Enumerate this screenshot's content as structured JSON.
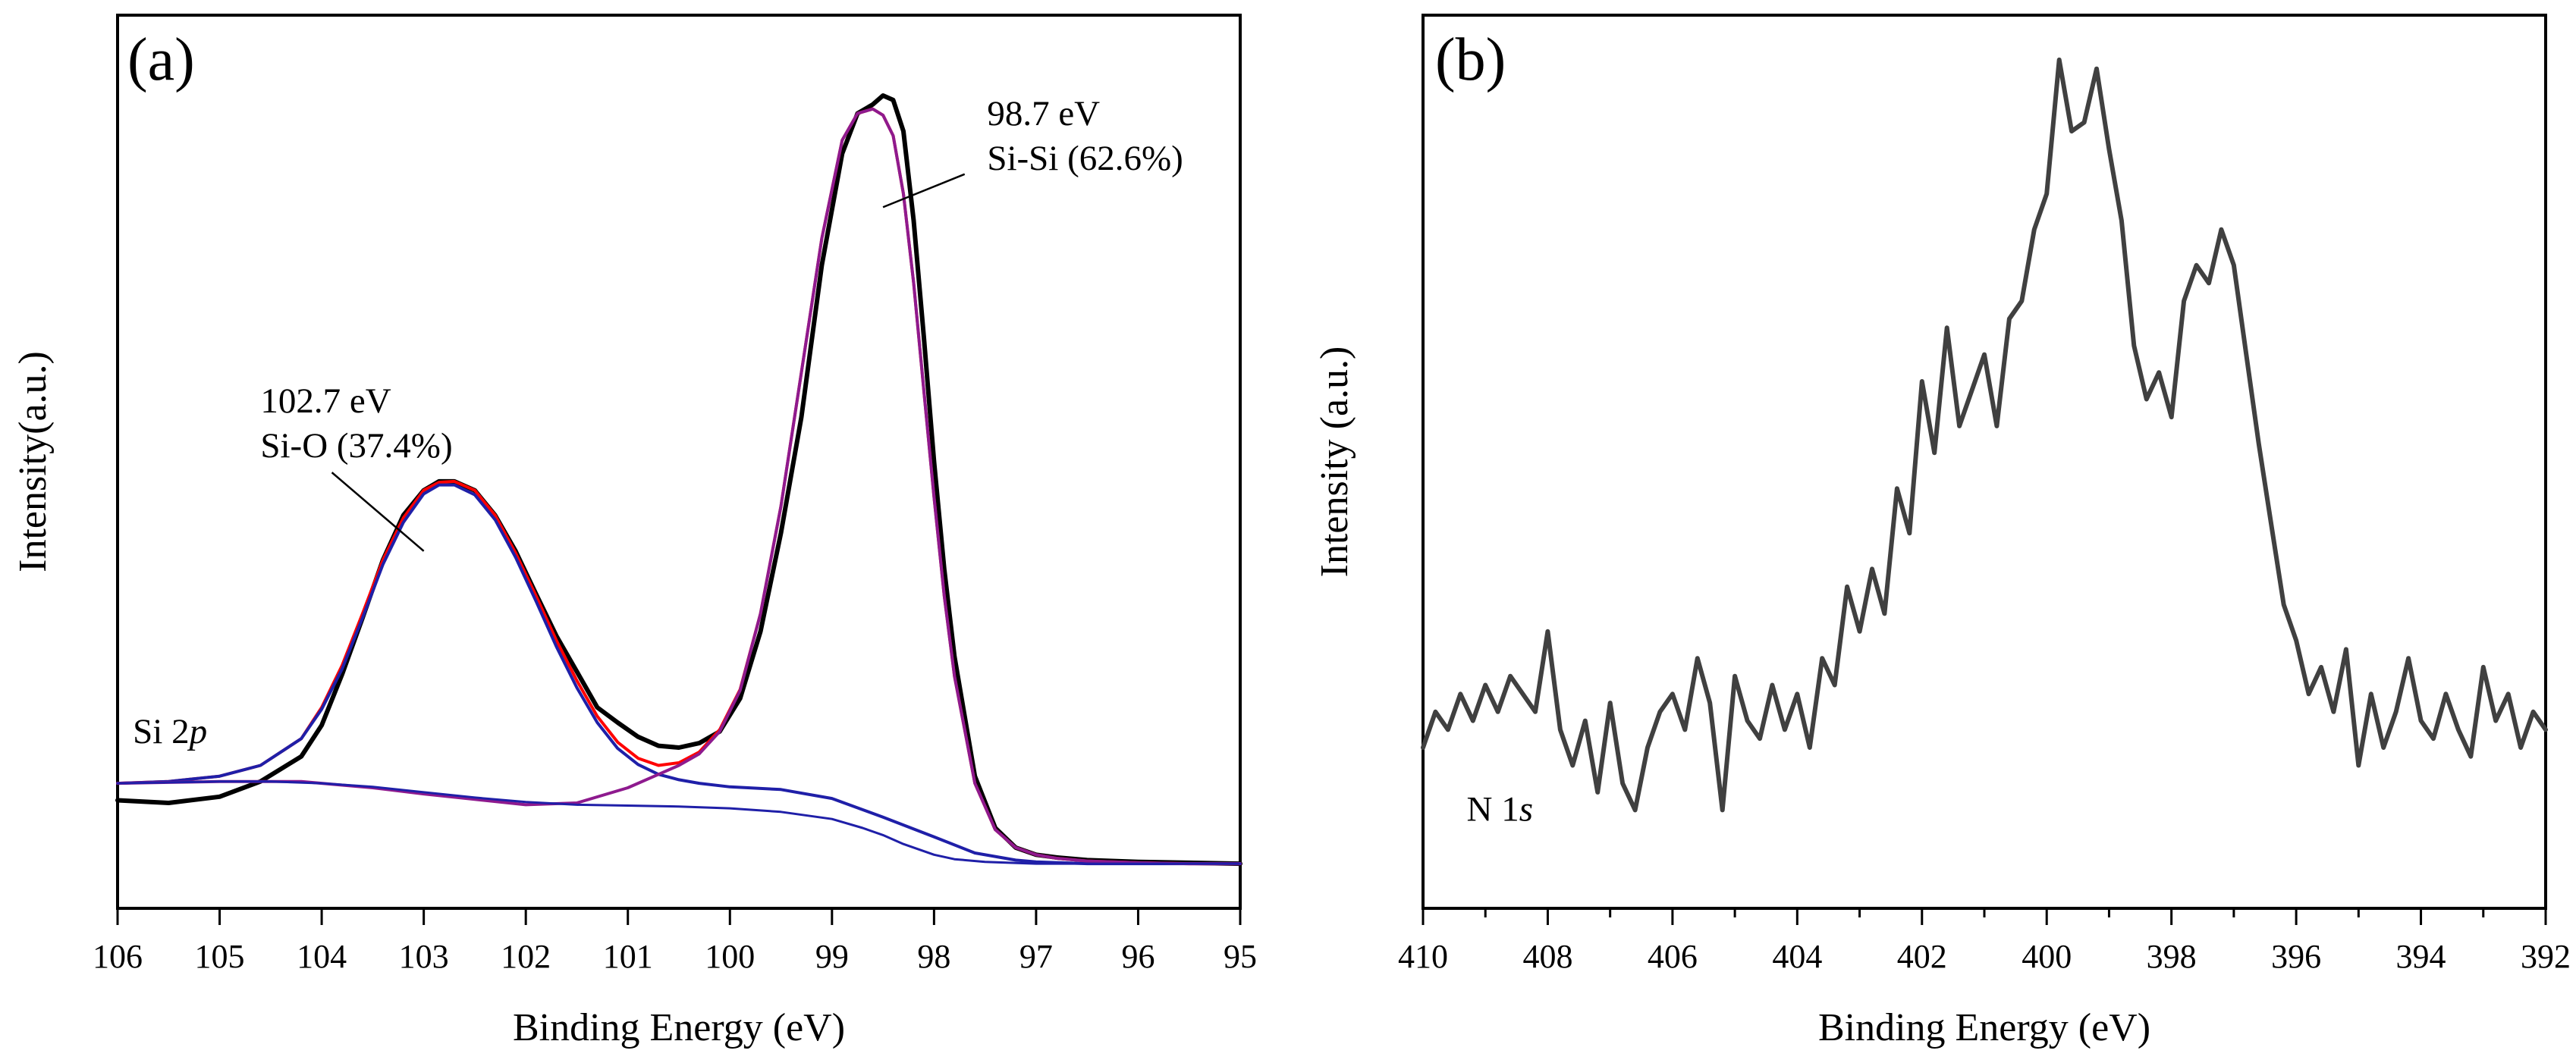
{
  "chart_data": [
    {
      "id": "a",
      "type": "line",
      "panel_label": "(a)",
      "xlabel": "Binding Energy (eV)",
      "ylabel": "Intensity(a.u.)",
      "xlim": [
        106,
        95
      ],
      "x_reversed": true,
      "ylim": [
        0,
        1
      ],
      "grid": false,
      "xticks": [
        106,
        105,
        104,
        103,
        102,
        101,
        100,
        99,
        98,
        97,
        96,
        95
      ],
      "annotations": [
        {
          "text": "102.7 eV",
          "x": 104.6,
          "y": 0.555
        },
        {
          "text": "Si-O (37.4%)",
          "x": 104.6,
          "y": 0.505
        },
        {
          "text": "98.7 eV",
          "x": 97.48,
          "y": 0.877
        },
        {
          "text": "Si-Si (62.6%)",
          "x": 97.48,
          "y": 0.827
        },
        {
          "text_parts": [
            {
              "text": "Si 2"
            },
            {
              "text": "p",
              "italic": true
            }
          ],
          "x": 105.85,
          "y": 0.185
        }
      ],
      "leader_lines": [
        {
          "from": [
            103.9,
            0.488
          ],
          "to": [
            103.0,
            0.4
          ]
        },
        {
          "from": [
            97.7,
            0.822
          ],
          "to": [
            98.5,
            0.785
          ]
        }
      ],
      "series": [
        {
          "name": "Si 2p raw data",
          "color": "#000000",
          "width": 6,
          "x": [
            106,
            105.5,
            105,
            104.6,
            104.2,
            104,
            103.8,
            103.6,
            103.4,
            103.2,
            103,
            102.85,
            102.7,
            102.5,
            102.3,
            102.1,
            101.9,
            101.7,
            101.5,
            101.3,
            101.1,
            100.9,
            100.7,
            100.5,
            100.3,
            100.1,
            99.9,
            99.7,
            99.5,
            99.3,
            99.1,
            98.9,
            98.75,
            98.6,
            98.5,
            98.4,
            98.3,
            98.2,
            98.1,
            98,
            97.9,
            97.8,
            97.6,
            97.4,
            97.2,
            97,
            96.8,
            96.5,
            96,
            95.5,
            95
          ],
          "y": [
            0.121,
            0.118,
            0.125,
            0.142,
            0.17,
            0.205,
            0.262,
            0.325,
            0.39,
            0.44,
            0.468,
            0.478,
            0.478,
            0.468,
            0.44,
            0.4,
            0.352,
            0.305,
            0.265,
            0.225,
            0.208,
            0.192,
            0.182,
            0.18,
            0.185,
            0.198,
            0.235,
            0.31,
            0.42,
            0.55,
            0.72,
            0.845,
            0.89,
            0.9,
            0.91,
            0.905,
            0.87,
            0.77,
            0.64,
            0.5,
            0.38,
            0.282,
            0.148,
            0.09,
            0.068,
            0.06,
            0.057,
            0.054,
            0.052,
            0.051,
            0.05
          ]
        },
        {
          "name": "Envelope fit",
          "color": "#ff0000",
          "width": 4,
          "x": [
            106,
            105.5,
            105,
            104.6,
            104.2,
            104,
            103.8,
            103.6,
            103.4,
            103.2,
            103,
            102.85,
            102.7,
            102.5,
            102.3,
            102.1,
            101.9,
            101.7,
            101.5,
            101.3,
            101.1,
            100.9,
            100.7,
            100.5,
            100.3,
            100.1,
            99.9,
            99.7,
            99.5,
            99.3,
            99.1,
            98.9,
            98.75,
            98.6,
            98.5,
            98.4,
            98.3,
            98.2,
            98.1,
            98,
            97.9,
            97.8,
            97.6,
            97.4,
            97.2,
            97,
            96.8,
            96.5,
            96,
            95.5,
            95
          ],
          "y": [
            0.14,
            0.142,
            0.148,
            0.16,
            0.19,
            0.225,
            0.272,
            0.33,
            0.39,
            0.437,
            0.468,
            0.477,
            0.478,
            0.468,
            0.44,
            0.398,
            0.35,
            0.3,
            0.255,
            0.215,
            0.186,
            0.168,
            0.16,
            0.163,
            0.175,
            0.2,
            0.245,
            0.33,
            0.45,
            0.6,
            0.75,
            0.86,
            0.89,
            0.895,
            0.888,
            0.865,
            0.8,
            0.7,
            0.58,
            0.46,
            0.35,
            0.26,
            0.14,
            0.088,
            0.068,
            0.06,
            0.056,
            0.053,
            0.051,
            0.05,
            0.05
          ]
        },
        {
          "name": "Si-O component",
          "color": "#1f1fa8",
          "width": 4,
          "x": [
            106,
            105.5,
            105,
            104.6,
            104.2,
            104,
            103.8,
            103.6,
            103.4,
            103.2,
            103,
            102.85,
            102.7,
            102.5,
            102.3,
            102.1,
            101.9,
            101.7,
            101.5,
            101.3,
            101.1,
            100.9,
            100.7,
            100.5,
            100.3,
            100,
            99.5,
            99,
            98.5,
            98,
            97.6,
            97.2,
            97,
            96.5,
            96,
            95.5,
            95
          ],
          "y": [
            0.14,
            0.142,
            0.148,
            0.16,
            0.19,
            0.223,
            0.268,
            0.325,
            0.385,
            0.432,
            0.464,
            0.474,
            0.474,
            0.463,
            0.435,
            0.393,
            0.344,
            0.293,
            0.247,
            0.208,
            0.179,
            0.161,
            0.15,
            0.144,
            0.14,
            0.136,
            0.133,
            0.123,
            0.102,
            0.08,
            0.062,
            0.054,
            0.052,
            0.05,
            0.05,
            0.05,
            0.05
          ]
        },
        {
          "name": "Si-Si component",
          "color": "#8e1a8e",
          "width": 4,
          "x": [
            106,
            105.5,
            105,
            104.6,
            104.2,
            104,
            103.5,
            103,
            102.5,
            102,
            101.5,
            101,
            100.7,
            100.5,
            100.3,
            100.1,
            99.9,
            99.7,
            99.5,
            99.3,
            99.1,
            98.9,
            98.75,
            98.6,
            98.5,
            98.4,
            98.3,
            98.2,
            98.1,
            98,
            97.9,
            97.8,
            97.6,
            97.4,
            97.2,
            97,
            96.8,
            96.5,
            96,
            95.5,
            95
          ],
          "y": [
            0.14,
            0.141,
            0.142,
            0.142,
            0.142,
            0.14,
            0.135,
            0.128,
            0.122,
            0.116,
            0.118,
            0.135,
            0.15,
            0.16,
            0.173,
            0.198,
            0.244,
            0.33,
            0.45,
            0.6,
            0.75,
            0.86,
            0.89,
            0.895,
            0.888,
            0.865,
            0.8,
            0.7,
            0.58,
            0.46,
            0.35,
            0.26,
            0.14,
            0.088,
            0.068,
            0.06,
            0.056,
            0.053,
            0.051,
            0.05,
            0.05
          ]
        },
        {
          "name": "Background",
          "color": "#1f1fa8",
          "width": 3,
          "x": [
            106,
            105,
            104.5,
            104,
            103.5,
            103,
            102.5,
            102,
            101.5,
            101,
            100.5,
            100,
            99.5,
            99,
            98.7,
            98.5,
            98.3,
            98,
            97.8,
            97.5,
            97,
            96,
            95
          ],
          "y": [
            0.14,
            0.142,
            0.142,
            0.14,
            0.136,
            0.13,
            0.124,
            0.119,
            0.116,
            0.115,
            0.114,
            0.112,
            0.108,
            0.1,
            0.09,
            0.082,
            0.072,
            0.06,
            0.055,
            0.052,
            0.05,
            0.05,
            0.05
          ]
        }
      ]
    },
    {
      "id": "b",
      "type": "line",
      "panel_label": "(b)",
      "xlabel": "Binding Energy (eV)",
      "ylabel": "Intensity (a.u.)",
      "xlim": [
        410,
        392
      ],
      "x_reversed": true,
      "ylim": [
        0,
        1
      ],
      "grid": false,
      "xticks": [
        410,
        408,
        406,
        404,
        402,
        400,
        398,
        396,
        394,
        392
      ],
      "annotations": [
        {
          "text_parts": [
            {
              "text": "N 1"
            },
            {
              "text": "s",
              "italic": true
            }
          ],
          "x": 409.3,
          "y": 0.098
        }
      ],
      "series": [
        {
          "name": "N 1s raw data",
          "color": "#404040",
          "width": 6,
          "x": [
            410,
            409.8,
            409.6,
            409.4,
            409.2,
            409,
            408.8,
            408.6,
            408.4,
            408.2,
            408,
            407.8,
            407.6,
            407.4,
            407.2,
            407,
            406.8,
            406.6,
            406.4,
            406.2,
            406,
            405.8,
            405.6,
            405.4,
            405.2,
            405,
            404.8,
            404.6,
            404.4,
            404.2,
            404,
            403.8,
            403.6,
            403.4,
            403.2,
            403,
            402.8,
            402.6,
            402.4,
            402.2,
            402,
            401.8,
            401.6,
            401.4,
            401.2,
            401,
            400.8,
            400.6,
            400.4,
            400.2,
            400,
            399.8,
            399.6,
            399.4,
            399.2,
            399,
            398.8,
            398.6,
            398.4,
            398.2,
            398,
            397.8,
            397.6,
            397.4,
            397.2,
            397,
            396.8,
            396.6,
            396.4,
            396.2,
            396,
            395.8,
            395.6,
            395.4,
            395.2,
            395,
            394.8,
            394.6,
            394.4,
            394.2,
            394,
            393.8,
            393.6,
            393.4,
            393.2,
            393,
            392.8,
            392.6,
            392.4,
            392.2,
            392
          ],
          "y": [
            0.18,
            0.22,
            0.2,
            0.24,
            0.21,
            0.25,
            0.22,
            0.26,
            0.24,
            0.22,
            0.31,
            0.2,
            0.16,
            0.21,
            0.13,
            0.23,
            0.14,
            0.11,
            0.18,
            0.22,
            0.24,
            0.2,
            0.28,
            0.23,
            0.11,
            0.26,
            0.21,
            0.19,
            0.25,
            0.2,
            0.24,
            0.18,
            0.28,
            0.25,
            0.36,
            0.31,
            0.38,
            0.33,
            0.47,
            0.42,
            0.59,
            0.51,
            0.65,
            0.54,
            0.58,
            0.62,
            0.54,
            0.66,
            0.68,
            0.76,
            0.8,
            0.95,
            0.87,
            0.88,
            0.94,
            0.85,
            0.77,
            0.63,
            0.57,
            0.6,
            0.55,
            0.68,
            0.72,
            0.7,
            0.76,
            0.72,
            0.62,
            0.52,
            0.43,
            0.34,
            0.3,
            0.24,
            0.27,
            0.22,
            0.29,
            0.16,
            0.24,
            0.18,
            0.22,
            0.28,
            0.21,
            0.19,
            0.24,
            0.2,
            0.17,
            0.27,
            0.21,
            0.24,
            0.18,
            0.22,
            0.2
          ]
        }
      ]
    }
  ]
}
